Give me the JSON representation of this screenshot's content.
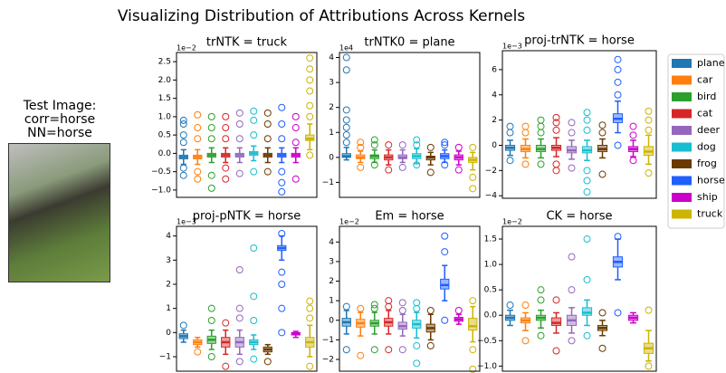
{
  "title": "Visualizing Distribution of Attributions Across Kernels",
  "test_image": {
    "lines": [
      "Test Image:",
      "corr=horse",
      "NN=horse"
    ]
  },
  "legend": {
    "labels": [
      "plane",
      "car",
      "bird",
      "cat",
      "deer",
      "dog",
      "frog",
      "horse",
      "ship",
      "truck"
    ],
    "colors": [
      "#1f77b4",
      "#ff7f0e",
      "#2ca02c",
      "#d62728",
      "#9467bd",
      "#17becf",
      "#6b3a00",
      "#1f5fff",
      "#cc00cc",
      "#ccb400"
    ]
  },
  "chart_data": [
    {
      "type": "box",
      "title": "trNTK = truck",
      "offset": "1e−2",
      "ylim": [
        -1.2,
        2.75
      ],
      "yticks": [
        {
          "value": -1,
          "label": "−1.0"
        },
        {
          "value": -0.5,
          "label": "−0.5"
        },
        {
          "value": 0,
          "label": "0.0"
        },
        {
          "value": 0.5,
          "label": "0.5"
        },
        {
          "value": 1,
          "label": "1.0"
        },
        {
          "value": 1.5,
          "label": "1.5"
        },
        {
          "value": 2,
          "label": "2.0"
        },
        {
          "value": 2.5,
          "label": "2.5"
        }
      ],
      "boxes": [
        {
          "low": -0.3,
          "q1": -0.15,
          "median": -0.1,
          "q3": -0.05,
          "high": 0.1,
          "outliers": [
            -0.6,
            -0.4,
            0.3,
            0.5,
            0.8,
            0.9
          ]
        },
        {
          "low": -0.3,
          "q1": -0.15,
          "median": -0.1,
          "q3": -0.05,
          "high": 0.1,
          "outliers": [
            -0.7,
            -0.5,
            0.4,
            0.7,
            1.05
          ]
        },
        {
          "low": -0.25,
          "q1": -0.1,
          "median": -0.05,
          "q3": 0,
          "high": 0.15,
          "outliers": [
            -0.95,
            -0.6,
            0.4,
            0.7,
            1
          ]
        },
        {
          "low": -0.25,
          "q1": -0.1,
          "median": -0.05,
          "q3": 0,
          "high": 0.15,
          "outliers": [
            -0.7,
            -0.4,
            0.4,
            0.7,
            1
          ]
        },
        {
          "low": -0.25,
          "q1": -0.1,
          "median": -0.05,
          "q3": 0,
          "high": 0.15,
          "outliers": [
            -0.55,
            0.4,
            0.8,
            1.1
          ]
        },
        {
          "low": -0.2,
          "q1": -0.05,
          "median": 0,
          "q3": 0.05,
          "high": 0.2,
          "outliers": [
            -0.5,
            0.5,
            0.9,
            1.15
          ]
        },
        {
          "low": -0.25,
          "q1": -0.1,
          "median": -0.05,
          "q3": 0,
          "high": 0.15,
          "outliers": [
            -0.5,
            0.4,
            0.8,
            1.1
          ]
        },
        {
          "low": -0.25,
          "q1": -0.1,
          "median": -0.05,
          "q3": 0,
          "high": 0.15,
          "outliers": [
            -1.05,
            -0.8,
            -0.5,
            0.4,
            0.8,
            1.25
          ]
        },
        {
          "low": -0.25,
          "q1": -0.1,
          "median": -0.05,
          "q3": 0,
          "high": 0.15,
          "outliers": [
            -0.7,
            0.3,
            0.7,
            1
          ]
        },
        {
          "low": 0.1,
          "q1": 0.35,
          "median": 0.4,
          "q3": 0.5,
          "high": 0.8,
          "outliers": [
            -0.05,
            1,
            1.3,
            1.7,
            2,
            2.3,
            2.6
          ]
        }
      ]
    },
    {
      "type": "box",
      "title": "trNTK0 = plane",
      "offset": "1e4",
      "ylim": [
        -1.6,
        4.2
      ],
      "yticks": [
        {
          "value": -1,
          "label": "−1"
        },
        0,
        1,
        2,
        3,
        4
      ],
      "boxes": [
        {
          "low": -0.1,
          "q1": 0,
          "median": 0.05,
          "q3": 0.15,
          "high": 0.4,
          "outliers": [
            0.6,
            0.9,
            1.2,
            1.5,
            1.9,
            3.5,
            4
          ]
        },
        {
          "low": -0.2,
          "q1": -0.05,
          "median": 0,
          "q3": 0.1,
          "high": 0.25,
          "outliers": [
            -0.4,
            0.4,
            0.6
          ]
        },
        {
          "low": -0.2,
          "q1": -0.05,
          "median": 0.05,
          "q3": 0.1,
          "high": 0.3,
          "outliers": [
            -0.3,
            0.5,
            0.7
          ]
        },
        {
          "low": -0.3,
          "q1": -0.1,
          "median": 0,
          "q3": 0.1,
          "high": 0.3,
          "outliers": [
            -0.5,
            0.5
          ]
        },
        {
          "low": -0.2,
          "q1": -0.05,
          "median": 0,
          "q3": 0.1,
          "high": 0.3,
          "outliers": [
            -0.4,
            0.5
          ]
        },
        {
          "low": -0.25,
          "q1": -0.05,
          "median": 0.05,
          "q3": 0.15,
          "high": 0.35,
          "outliers": [
            -0.3,
            0.5,
            0.7
          ]
        },
        {
          "low": -0.3,
          "q1": -0.1,
          "median": 0,
          "q3": 0.05,
          "high": 0.2,
          "outliers": [
            -0.6,
            0.4
          ]
        },
        {
          "low": -0.2,
          "q1": -0.05,
          "median": 0.05,
          "q3": 0.15,
          "high": 0.3,
          "outliers": [
            -0.3,
            0.5,
            0.6
          ]
        },
        {
          "low": -0.3,
          "q1": -0.1,
          "median": 0,
          "q3": 0.1,
          "high": 0.25,
          "outliers": [
            -0.5,
            0.4
          ]
        },
        {
          "low": -0.5,
          "q1": -0.2,
          "median": -0.1,
          "q3": 0,
          "high": 0.2,
          "outliers": [
            -0.8,
            -1.25,
            0.4
          ]
        }
      ]
    },
    {
      "type": "box",
      "title": "proj-trNTK = horse",
      "offset": "1e−3",
      "ylim": [
        -4.2,
        7.5
      ],
      "yticks": [
        {
          "value": -4,
          "label": "−4"
        },
        {
          "value": -2,
          "label": "−2"
        },
        0,
        2,
        4,
        6
      ],
      "boxes": [
        {
          "low": -0.8,
          "q1": -0.4,
          "median": -0.2,
          "q3": 0,
          "high": 0.4,
          "outliers": [
            -1.2,
            1,
            1.5
          ]
        },
        {
          "low": -1,
          "q1": -0.5,
          "median": -0.3,
          "q3": 0,
          "high": 0.5,
          "outliers": [
            -1.5,
            1,
            1.5
          ]
        },
        {
          "low": -1,
          "q1": -0.5,
          "median": -0.3,
          "q3": 0,
          "high": 0.5,
          "outliers": [
            -1.5,
            1,
            1.5,
            2
          ]
        },
        {
          "low": -0.9,
          "q1": -0.4,
          "median": -0.2,
          "q3": 0,
          "high": 0.6,
          "outliers": [
            -2,
            -1.5,
            1.2,
            1.8,
            2.2
          ]
        },
        {
          "low": -1.1,
          "q1": -0.6,
          "median": -0.4,
          "q3": -0.1,
          "high": 0.4,
          "outliers": [
            -1.8,
            1,
            1.8
          ]
        },
        {
          "low": -1.2,
          "q1": -0.6,
          "median": -0.4,
          "q3": -0.1,
          "high": 0.4,
          "outliers": [
            -3.7,
            -2.8,
            -2,
            1.2,
            2,
            2.6
          ]
        },
        {
          "low": -1,
          "q1": -0.5,
          "median": -0.3,
          "q3": 0,
          "high": 0.5,
          "outliers": [
            -2.3,
            1,
            1.6
          ]
        },
        {
          "low": 1,
          "q1": 1.8,
          "median": 2.1,
          "q3": 2.5,
          "high": 3.5,
          "outliers": [
            0,
            4,
            5,
            6,
            6.8
          ]
        },
        {
          "low": -0.9,
          "q1": -0.5,
          "median": -0.3,
          "q3": -0.1,
          "high": 0.4,
          "outliers": [
            -1.2,
            0.8,
            1.5
          ]
        },
        {
          "low": -1.5,
          "q1": -0.8,
          "median": -0.5,
          "q3": -0.1,
          "high": 0.8,
          "outliers": [
            -2.2,
            1.2,
            2,
            2.7
          ]
        }
      ]
    },
    {
      "type": "box",
      "title": "proj-pNTK = horse",
      "offset": "1e−3",
      "ylim": [
        -1.6,
        4.4
      ],
      "yticks": [
        {
          "value": -1,
          "label": "−1"
        },
        0,
        1,
        2,
        3,
        4
      ],
      "boxes": [
        {
          "low": -0.4,
          "q1": -0.25,
          "median": -0.15,
          "q3": -0.05,
          "high": 0.1,
          "outliers": [
            0.3
          ]
        },
        {
          "low": -0.6,
          "q1": -0.5,
          "median": -0.4,
          "q3": -0.3,
          "high": -0.2,
          "outliers": [
            -0.8
          ]
        },
        {
          "low": -0.7,
          "q1": -0.45,
          "median": -0.3,
          "q3": -0.15,
          "high": 0.1,
          "outliers": [
            -1,
            0.5,
            1
          ]
        },
        {
          "low": -0.9,
          "q1": -0.6,
          "median": -0.4,
          "q3": -0.2,
          "high": 0.1,
          "outliers": [
            -1.4,
            0.4
          ]
        },
        {
          "low": -0.9,
          "q1": -0.6,
          "median": -0.4,
          "q3": -0.2,
          "high": 0.1,
          "outliers": [
            -1.2,
            0.6,
            1,
            2.6
          ]
        },
        {
          "low": -0.7,
          "q1": -0.5,
          "median": -0.4,
          "q3": -0.3,
          "high": -0.1,
          "outliers": [
            -1.1,
            0.5,
            1.5,
            3.5
          ]
        },
        {
          "low": -0.9,
          "q1": -0.8,
          "median": -0.7,
          "q3": -0.6,
          "high": -0.5,
          "outliers": [
            -1.2
          ]
        },
        {
          "low": 3,
          "q1": 3.4,
          "median": 3.5,
          "q3": 3.6,
          "high": 4,
          "outliers": [
            0,
            1,
            2,
            2.5,
            4.1
          ]
        },
        {
          "low": -0.2,
          "q1": -0.1,
          "median": -0.05,
          "q3": 0,
          "high": 0.05,
          "outliers": []
        },
        {
          "low": -1,
          "q1": -0.6,
          "median": -0.4,
          "q3": -0.2,
          "high": 0.3,
          "outliers": [
            -1.4,
            0.6,
            1,
            1.3
          ]
        }
      ]
    },
    {
      "type": "box",
      "title": "Em = horse",
      "offset": "1e−2",
      "ylim": [
        -2.6,
        4.8
      ],
      "yticks": [
        {
          "value": -2,
          "label": "−2"
        },
        {
          "value": -1,
          "label": "−1"
        },
        0,
        1,
        2,
        3,
        4
      ],
      "boxes": [
        {
          "low": -0.7,
          "q1": -0.3,
          "median": -0.1,
          "q3": 0.1,
          "high": 0.5,
          "outliers": [
            -1.5,
            0.7
          ]
        },
        {
          "low": -0.8,
          "q1": -0.35,
          "median": -0.15,
          "q3": 0.05,
          "high": 0.4,
          "outliers": [
            -1.8,
            0.6
          ]
        },
        {
          "low": -0.7,
          "q1": -0.3,
          "median": -0.15,
          "q3": 0,
          "high": 0.4,
          "outliers": [
            -1.5,
            0.6,
            0.8
          ]
        },
        {
          "low": -0.7,
          "q1": -0.3,
          "median": -0.1,
          "q3": 0.1,
          "high": 0.5,
          "outliers": [
            -1.5,
            0.7,
            1
          ]
        },
        {
          "low": -0.8,
          "q1": -0.45,
          "median": -0.3,
          "q3": -0.1,
          "high": 0.3,
          "outliers": [
            -1.5,
            0.5,
            0.9
          ]
        },
        {
          "low": -0.9,
          "q1": -0.4,
          "median": -0.2,
          "q3": 0,
          "high": 0.4,
          "outliers": [
            -2.2,
            -1.3,
            0.6,
            0.9
          ]
        },
        {
          "low": -1,
          "q1": -0.6,
          "median": -0.4,
          "q3": -0.2,
          "high": 0.3,
          "outliers": [
            -1.3,
            0.5
          ]
        },
        {
          "low": 1,
          "q1": 1.6,
          "median": 1.8,
          "q3": 2.1,
          "high": 2.8,
          "outliers": [
            0,
            3.5,
            4.3
          ]
        },
        {
          "low": -0.2,
          "q1": -0.05,
          "median": 0.05,
          "q3": 0.15,
          "high": 0.3,
          "outliers": [
            0.5
          ]
        },
        {
          "low": -1.1,
          "q1": -0.5,
          "median": -0.3,
          "q3": 0.1,
          "high": 0.7,
          "outliers": [
            -2.5,
            -1.5,
            1
          ]
        }
      ]
    },
    {
      "type": "box",
      "title": "CK = horse",
      "offset": "1e−2",
      "ylim": [
        -1.1,
        1.75
      ],
      "yticks": [
        {
          "value": -1,
          "label": "−1.0"
        },
        {
          "value": -0.5,
          "label": "−0.5"
        },
        {
          "value": 0,
          "label": "0.0"
        },
        {
          "value": 0.5,
          "label": "0.5"
        },
        {
          "value": 1,
          "label": "1.0"
        },
        {
          "value": 1.5,
          "label": "1.5"
        }
      ],
      "boxes": [
        {
          "low": -0.2,
          "q1": -0.1,
          "median": -0.05,
          "q3": 0,
          "high": 0.1,
          "outliers": [
            0.2
          ]
        },
        {
          "low": -0.3,
          "q1": -0.15,
          "median": -0.1,
          "q3": -0.05,
          "high": 0.05,
          "outliers": [
            -0.5,
            0.2
          ]
        },
        {
          "low": -0.25,
          "q1": -0.1,
          "median": -0.05,
          "q3": 0,
          "high": 0.1,
          "outliers": [
            -0.4,
            0.3,
            0.5
          ]
        },
        {
          "low": -0.35,
          "q1": -0.2,
          "median": -0.15,
          "q3": -0.05,
          "high": 0.05,
          "outliers": [
            -0.7,
            0.3
          ]
        },
        {
          "low": -0.35,
          "q1": -0.2,
          "median": -0.1,
          "q3": 0,
          "high": 0.15,
          "outliers": [
            -0.5,
            0.5,
            1.15
          ]
        },
        {
          "low": -0.2,
          "q1": 0,
          "median": 0.05,
          "q3": 0.15,
          "high": 0.3,
          "outliers": [
            -0.4,
            0.7,
            1.5
          ]
        },
        {
          "low": -0.4,
          "q1": -0.3,
          "median": -0.25,
          "q3": -0.2,
          "high": -0.1,
          "outliers": [
            -0.65,
            0.05
          ]
        },
        {
          "low": 0.7,
          "q1": 0.95,
          "median": 1.05,
          "q3": 1.15,
          "high": 1.5,
          "outliers": [
            0.05,
            1.55
          ]
        },
        {
          "low": -0.15,
          "q1": -0.1,
          "median": -0.05,
          "q3": 0,
          "high": 0.05,
          "outliers": []
        },
        {
          "low": -0.9,
          "q1": -0.75,
          "median": -0.65,
          "q3": -0.55,
          "high": -0.3,
          "outliers": [
            -1,
            0.1
          ]
        }
      ]
    }
  ]
}
